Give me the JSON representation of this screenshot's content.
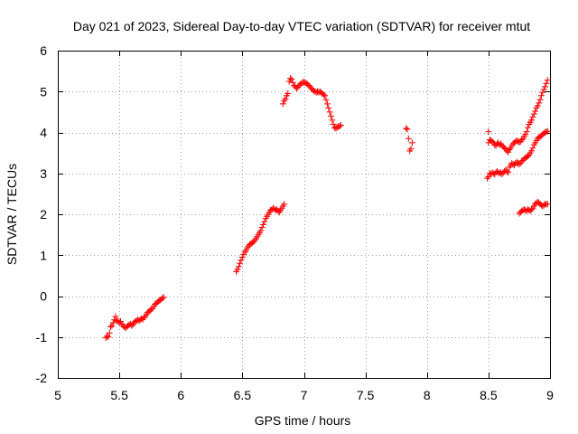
{
  "chart_data": {
    "type": "scatter",
    "title": "Day 021 of 2023, Sidereal Day-to-day VTEC variation (SDTVAR) for receiver mtut",
    "xlabel": "GPS time / hours",
    "ylabel": "SDTVAR / TECUs",
    "xlim": [
      5,
      9
    ],
    "ylim": [
      -2,
      6
    ],
    "x_ticks": [
      5,
      5.5,
      6,
      6.5,
      7,
      7.5,
      8,
      8.5,
      9
    ],
    "x_tick_labels": [
      "5",
      "5.5",
      "6",
      "6.5",
      "7",
      "7.5",
      "8",
      "8.5",
      "9"
    ],
    "y_ticks": [
      -2,
      -1,
      0,
      1,
      2,
      3,
      4,
      5,
      6
    ],
    "y_tick_labels": [
      "-2",
      "-1",
      "0",
      "1",
      "2",
      "3",
      "4",
      "5",
      "6"
    ],
    "grid": true,
    "marker": "plus",
    "color": "#ff0000",
    "series": [
      {
        "name": "segment-1",
        "points": [
          [
            5.39,
            -1.02
          ],
          [
            5.4,
            -0.98
          ],
          [
            5.41,
            -1.0
          ],
          [
            5.42,
            -0.9
          ],
          [
            5.43,
            -0.75
          ],
          [
            5.44,
            -0.72
          ],
          [
            5.45,
            -0.65
          ],
          [
            5.46,
            -0.58
          ],
          [
            5.47,
            -0.5
          ],
          [
            5.48,
            -0.6
          ],
          [
            5.49,
            -0.62
          ],
          [
            5.5,
            -0.65
          ],
          [
            5.51,
            -0.62
          ],
          [
            5.52,
            -0.68
          ],
          [
            5.53,
            -0.72
          ],
          [
            5.54,
            -0.75
          ],
          [
            5.55,
            -0.78
          ],
          [
            5.56,
            -0.75
          ],
          [
            5.57,
            -0.72
          ],
          [
            5.58,
            -0.7
          ],
          [
            5.59,
            -0.68
          ],
          [
            5.6,
            -0.72
          ],
          [
            5.61,
            -0.7
          ],
          [
            5.62,
            -0.65
          ],
          [
            5.63,
            -0.62
          ],
          [
            5.64,
            -0.6
          ],
          [
            5.65,
            -0.58
          ],
          [
            5.66,
            -0.6
          ],
          [
            5.67,
            -0.58
          ],
          [
            5.68,
            -0.55
          ],
          [
            5.69,
            -0.57
          ],
          [
            5.7,
            -0.52
          ],
          [
            5.71,
            -0.5
          ],
          [
            5.72,
            -0.45
          ],
          [
            5.73,
            -0.4
          ],
          [
            5.74,
            -0.38
          ],
          [
            5.75,
            -0.35
          ],
          [
            5.76,
            -0.32
          ],
          [
            5.77,
            -0.3
          ],
          [
            5.78,
            -0.25
          ],
          [
            5.79,
            -0.2
          ],
          [
            5.8,
            -0.18
          ],
          [
            5.81,
            -0.15
          ],
          [
            5.82,
            -0.12
          ],
          [
            5.83,
            -0.1
          ],
          [
            5.84,
            -0.08
          ],
          [
            5.85,
            -0.05
          ],
          [
            5.86,
            -0.03
          ]
        ]
      },
      {
        "name": "segment-2",
        "points": [
          [
            6.45,
            0.6
          ],
          [
            6.46,
            0.65
          ],
          [
            6.47,
            0.72
          ],
          [
            6.48,
            0.8
          ],
          [
            6.49,
            0.88
          ],
          [
            6.5,
            0.95
          ],
          [
            6.51,
            1.02
          ],
          [
            6.52,
            1.08
          ],
          [
            6.53,
            1.12
          ],
          [
            6.54,
            1.18
          ],
          [
            6.55,
            1.22
          ],
          [
            6.56,
            1.26
          ],
          [
            6.57,
            1.28
          ],
          [
            6.58,
            1.3
          ],
          [
            6.59,
            1.33
          ],
          [
            6.6,
            1.36
          ],
          [
            6.61,
            1.4
          ],
          [
            6.62,
            1.45
          ],
          [
            6.63,
            1.5
          ],
          [
            6.64,
            1.55
          ],
          [
            6.65,
            1.6
          ],
          [
            6.66,
            1.68
          ],
          [
            6.67,
            1.75
          ],
          [
            6.68,
            1.82
          ],
          [
            6.69,
            1.9
          ],
          [
            6.7,
            1.95
          ],
          [
            6.71,
            2.0
          ],
          [
            6.72,
            2.05
          ],
          [
            6.73,
            2.1
          ],
          [
            6.74,
            2.12
          ],
          [
            6.75,
            2.15
          ],
          [
            6.76,
            2.13
          ],
          [
            6.77,
            2.1
          ],
          [
            6.78,
            2.12
          ],
          [
            6.79,
            2.08
          ],
          [
            6.8,
            2.05
          ],
          [
            6.81,
            2.1
          ],
          [
            6.82,
            2.15
          ],
          [
            6.83,
            2.2
          ],
          [
            6.84,
            2.25
          ]
        ]
      },
      {
        "name": "segment-3",
        "points": [
          [
            6.83,
            4.7
          ],
          [
            6.84,
            4.78
          ],
          [
            6.85,
            4.82
          ],
          [
            6.86,
            4.9
          ],
          [
            6.87,
            4.95
          ],
          [
            6.88,
            5.25
          ],
          [
            6.89,
            5.32
          ],
          [
            6.9,
            5.3
          ],
          [
            6.91,
            5.22
          ],
          [
            6.92,
            5.15
          ],
          [
            6.93,
            5.12
          ],
          [
            6.94,
            5.08
          ],
          [
            6.95,
            5.1
          ],
          [
            6.96,
            5.15
          ],
          [
            6.97,
            5.18
          ],
          [
            6.98,
            5.2
          ],
          [
            6.99,
            5.22
          ],
          [
            7.0,
            5.23
          ],
          [
            7.01,
            5.22
          ],
          [
            7.02,
            5.2
          ],
          [
            7.03,
            5.18
          ],
          [
            7.04,
            5.15
          ],
          [
            7.05,
            5.12
          ],
          [
            7.06,
            5.08
          ],
          [
            7.07,
            5.05
          ],
          [
            7.08,
            5.02
          ],
          [
            7.09,
            5.0
          ],
          [
            7.1,
            4.98
          ],
          [
            7.11,
            5.0
          ],
          [
            7.12,
            4.98
          ],
          [
            7.13,
            5.0
          ],
          [
            7.14,
            4.98
          ],
          [
            7.15,
            4.95
          ],
          [
            7.16,
            4.92
          ],
          [
            7.17,
            4.9
          ],
          [
            7.18,
            4.8
          ],
          [
            7.19,
            4.7
          ],
          [
            7.2,
            4.6
          ],
          [
            7.21,
            4.5
          ],
          [
            7.22,
            4.4
          ],
          [
            7.23,
            4.3
          ],
          [
            7.24,
            4.2
          ],
          [
            7.25,
            4.12
          ],
          [
            7.26,
            4.1
          ],
          [
            7.27,
            4.12
          ],
          [
            7.28,
            4.15
          ],
          [
            7.29,
            4.15
          ],
          [
            7.3,
            4.18
          ]
        ]
      },
      {
        "name": "segment-4",
        "points": [
          [
            7.83,
            4.1
          ],
          [
            7.84,
            4.08
          ],
          [
            7.85,
            3.85
          ],
          [
            7.86,
            3.55
          ],
          [
            7.87,
            3.6
          ],
          [
            7.88,
            3.75
          ]
        ]
      },
      {
        "name": "segment-5-upper",
        "points": [
          [
            8.5,
            3.75
          ],
          [
            8.51,
            3.82
          ],
          [
            8.52,
            3.8
          ],
          [
            8.53,
            3.78
          ],
          [
            8.54,
            3.75
          ],
          [
            8.55,
            3.7
          ],
          [
            8.56,
            3.68
          ],
          [
            8.57,
            3.72
          ],
          [
            8.58,
            3.75
          ],
          [
            8.59,
            3.7
          ],
          [
            8.6,
            3.72
          ],
          [
            8.61,
            3.68
          ],
          [
            8.62,
            3.65
          ],
          [
            8.63,
            3.62
          ],
          [
            8.64,
            3.6
          ],
          [
            8.65,
            3.55
          ],
          [
            8.66,
            3.52
          ],
          [
            8.67,
            3.58
          ],
          [
            8.68,
            3.62
          ],
          [
            8.69,
            3.68
          ],
          [
            8.7,
            3.72
          ],
          [
            8.71,
            3.75
          ],
          [
            8.72,
            3.78
          ],
          [
            8.73,
            3.8
          ],
          [
            8.74,
            3.78
          ],
          [
            8.75,
            3.76
          ],
          [
            8.76,
            3.78
          ],
          [
            8.77,
            3.82
          ],
          [
            8.78,
            3.85
          ],
          [
            8.79,
            3.9
          ],
          [
            8.8,
            3.95
          ],
          [
            8.81,
            4.02
          ],
          [
            8.82,
            4.12
          ],
          [
            8.83,
            4.2
          ],
          [
            8.84,
            4.25
          ],
          [
            8.85,
            4.3
          ],
          [
            8.86,
            4.38
          ],
          [
            8.87,
            4.45
          ],
          [
            8.88,
            4.52
          ],
          [
            8.89,
            4.6
          ],
          [
            8.9,
            4.65
          ],
          [
            8.91,
            4.72
          ],
          [
            8.92,
            4.8
          ],
          [
            8.93,
            4.9
          ],
          [
            8.94,
            4.98
          ],
          [
            8.95,
            5.05
          ],
          [
            8.96,
            5.12
          ],
          [
            8.97,
            5.2
          ],
          [
            8.98,
            5.28
          ]
        ]
      },
      {
        "name": "segment-5-middle",
        "points": [
          [
            8.49,
            2.88
          ],
          [
            8.5,
            2.92
          ],
          [
            8.51,
            3.0
          ],
          [
            8.52,
            2.98
          ],
          [
            8.53,
            3.02
          ],
          [
            8.54,
            3.0
          ],
          [
            8.55,
            2.98
          ],
          [
            8.56,
            3.02
          ],
          [
            8.57,
            3.05
          ],
          [
            8.58,
            3.02
          ],
          [
            8.59,
            3.0
          ],
          [
            8.6,
            3.02
          ],
          [
            8.61,
            2.98
          ],
          [
            8.62,
            3.02
          ],
          [
            8.63,
            3.05
          ],
          [
            8.64,
            3.08
          ],
          [
            8.65,
            3.05
          ],
          [
            8.66,
            3.02
          ],
          [
            8.67,
            3.15
          ],
          [
            8.68,
            3.2
          ],
          [
            8.69,
            3.25
          ],
          [
            8.7,
            3.22
          ],
          [
            8.71,
            3.2
          ],
          [
            8.72,
            3.25
          ],
          [
            8.73,
            3.28
          ],
          [
            8.74,
            3.25
          ],
          [
            8.75,
            3.22
          ],
          [
            8.76,
            3.25
          ],
          [
            8.77,
            3.3
          ],
          [
            8.78,
            3.32
          ],
          [
            8.79,
            3.35
          ],
          [
            8.8,
            3.38
          ],
          [
            8.81,
            3.4
          ],
          [
            8.82,
            3.42
          ],
          [
            8.83,
            3.45
          ],
          [
            8.84,
            3.5
          ],
          [
            8.85,
            3.55
          ],
          [
            8.86,
            3.62
          ],
          [
            8.87,
            3.7
          ],
          [
            8.88,
            3.75
          ],
          [
            8.89,
            3.8
          ],
          [
            8.9,
            3.85
          ],
          [
            8.91,
            3.88
          ],
          [
            8.92,
            3.9
          ],
          [
            8.93,
            3.92
          ],
          [
            8.94,
            3.95
          ],
          [
            8.95,
            3.98
          ],
          [
            8.96,
            4.0
          ],
          [
            8.97,
            4.02
          ],
          [
            8.98,
            4.03
          ]
        ]
      },
      {
        "name": "segment-5-lower",
        "points": [
          [
            8.75,
            2.02
          ],
          [
            8.76,
            2.05
          ],
          [
            8.77,
            2.08
          ],
          [
            8.78,
            2.1
          ],
          [
            8.79,
            2.12
          ],
          [
            8.8,
            2.1
          ],
          [
            8.81,
            2.08
          ],
          [
            8.82,
            2.12
          ],
          [
            8.83,
            2.1
          ],
          [
            8.84,
            2.08
          ],
          [
            8.85,
            2.12
          ],
          [
            8.86,
            2.15
          ],
          [
            8.87,
            2.2
          ],
          [
            8.88,
            2.25
          ],
          [
            8.89,
            2.28
          ],
          [
            8.9,
            2.3
          ],
          [
            8.91,
            2.28
          ],
          [
            8.92,
            2.25
          ],
          [
            8.93,
            2.22
          ],
          [
            8.94,
            2.2
          ],
          [
            8.95,
            2.22
          ],
          [
            8.96,
            2.25
          ],
          [
            8.97,
            2.25
          ],
          [
            8.98,
            2.25
          ]
        ]
      },
      {
        "name": "isolated",
        "points": [
          [
            8.5,
            4.02
          ]
        ]
      }
    ]
  }
}
